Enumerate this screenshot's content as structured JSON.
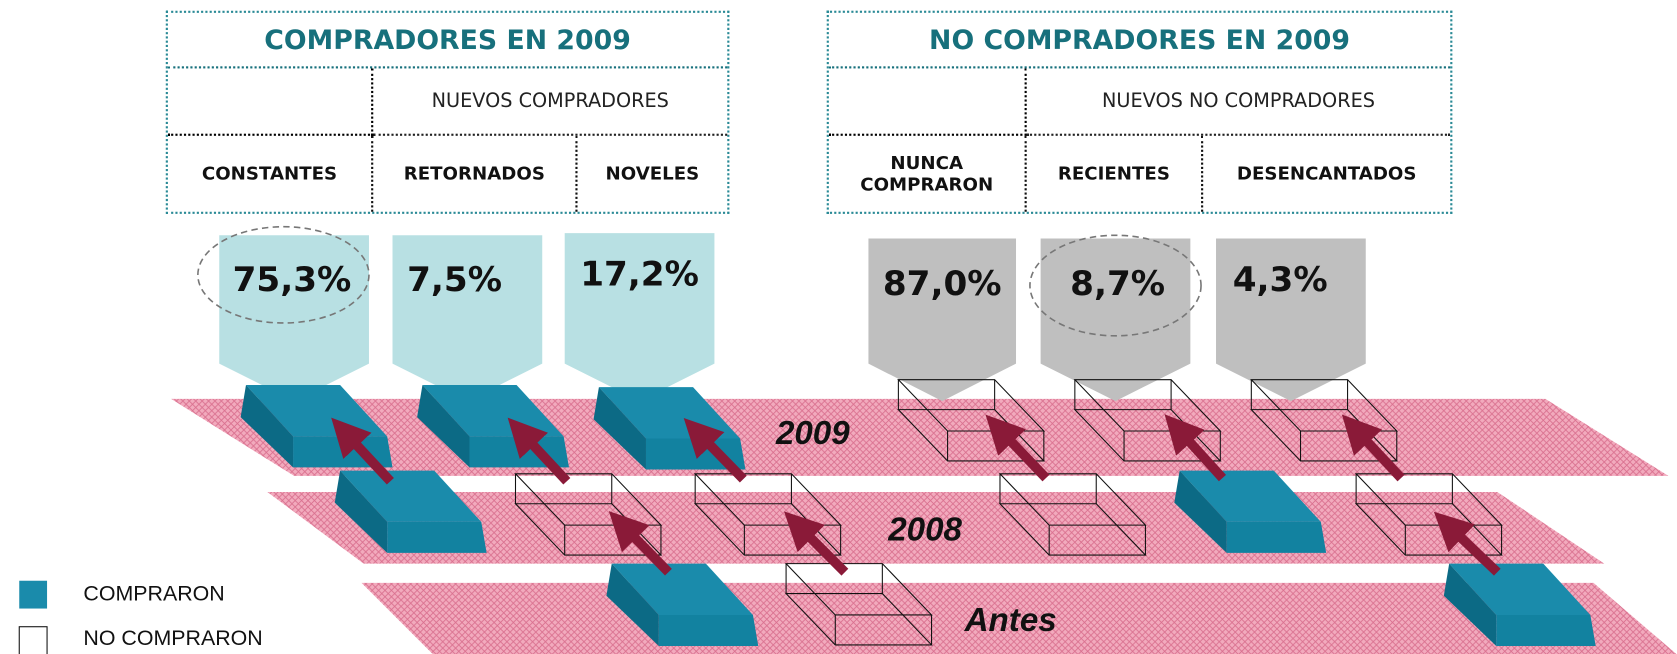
{
  "groups": [
    {
      "title": "COMPRADORES EN 2009",
      "subtitle": "NUEVOS COMPRADORES",
      "columns": [
        "CONSTANTES",
        "RETORNADOS",
        "NOVELES"
      ],
      "percentages": [
        "75,3%",
        "7,5%",
        "17,2%"
      ]
    },
    {
      "title": "NO COMPRADORES EN 2009",
      "subtitle": "NUEVOS NO COMPRADORES",
      "columns": [
        "NUNCA COMPRARON",
        "RECIENTES",
        "DESENCANTADOS"
      ],
      "percentages": [
        "87,0%",
        "8,7%",
        "4,3%"
      ]
    }
  ],
  "years": [
    "2009",
    "2008",
    "Antes"
  ],
  "legend": [
    "COMPRARON",
    "NO COMPRARON"
  ]
}
